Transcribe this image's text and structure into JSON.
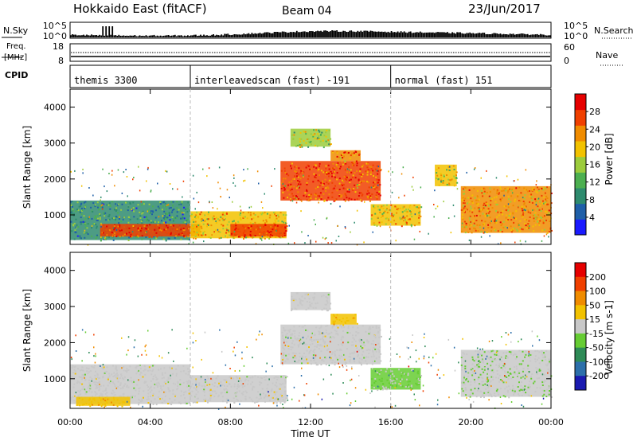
{
  "header": {
    "station": "Hokkaido East (fitACF)",
    "beam": "Beam 04",
    "date": "23/Jun/2017"
  },
  "nsky_panel": {
    "left_label": "N.Sky",
    "right_label": "N.Search",
    "left_ticks": [
      "10^5",
      "10^0"
    ],
    "right_ticks": [
      "10^5",
      "10^0"
    ]
  },
  "freq_panel": {
    "label_line1": "Freq.",
    "label_line2": "[MHz]",
    "left_ticks": [
      "18",
      "8"
    ],
    "right_ticks": [
      "60",
      "0"
    ],
    "right_label": "Nave"
  },
  "cpid_panel": {
    "label": "CPID",
    "segments": [
      {
        "start_hour": 0,
        "end_hour": 6,
        "name": "themis 3300"
      },
      {
        "start_hour": 6,
        "end_hour": 16,
        "name": "interleavedscan (fast) -191"
      },
      {
        "start_hour": 16,
        "end_hour": 24,
        "name": "normal (fast) 151"
      }
    ]
  },
  "x_axis": {
    "label": "Time UT",
    "ticks": [
      "00:00",
      "04:00",
      "08:00",
      "12:00",
      "16:00",
      "20:00",
      "00:00"
    ],
    "tick_hours": [
      0,
      4,
      8,
      12,
      16,
      20,
      24
    ],
    "range_hours": [
      0,
      24
    ]
  },
  "colors": {
    "power_scale": [
      "#1a1aff",
      "#1f5fa8",
      "#2e8b6e",
      "#4caf50",
      "#9ccc3c",
      "#f2c200",
      "#f08c00",
      "#f04000",
      "#e60000"
    ],
    "velocity_scale": [
      "#e60000",
      "#f04000",
      "#f08c00",
      "#f2c200",
      "#c8c8c8",
      "#66cc33",
      "#2e8b57",
      "#2c6faa",
      "#1a1ab0"
    ],
    "ground_scatter": "#b4b4b4"
  },
  "chart_data": [
    {
      "type": "heatmap",
      "panel": "power",
      "ylabel": "Slant Range [km]",
      "ylim": [
        180,
        4500
      ],
      "y_ticks": [
        1000,
        2000,
        3000,
        4000
      ],
      "colorbar": {
        "label": "Power [dB]",
        "ticks": [
          4,
          8,
          12,
          16,
          20,
          24,
          28
        ],
        "range": [
          0,
          32
        ]
      },
      "regions": [
        {
          "hours": [
            0,
            6
          ],
          "range_km": [
            300,
            1400
          ],
          "level": 10
        },
        {
          "hours": [
            1.5,
            6.5
          ],
          "range_km": [
            400,
            750
          ],
          "level": 28
        },
        {
          "hours": [
            6,
            10.8
          ],
          "range_km": [
            350,
            1100
          ],
          "level": 20
        },
        {
          "hours": [
            8,
            10.8
          ],
          "range_km": [
            400,
            750
          ],
          "level": 28
        },
        {
          "hours": [
            10.5,
            15.5
          ],
          "range_km": [
            1400,
            2500
          ],
          "level": 26
        },
        {
          "hours": [
            11,
            13
          ],
          "range_km": [
            2900,
            3400
          ],
          "level": 16
        },
        {
          "hours": [
            13,
            14.5
          ],
          "range_km": [
            2500,
            2800
          ],
          "level": 24
        },
        {
          "hours": [
            15,
            17.5
          ],
          "range_km": [
            700,
            1300
          ],
          "level": 20
        },
        {
          "hours": [
            19.5,
            24
          ],
          "range_km": [
            500,
            1800
          ],
          "level": 22
        },
        {
          "hours": [
            18.2,
            19.3
          ],
          "range_km": [
            1800,
            2400
          ],
          "level": 18
        }
      ]
    },
    {
      "type": "heatmap",
      "panel": "velocity",
      "ylabel": "Slant Range [km]",
      "ylim": [
        180,
        4500
      ],
      "y_ticks": [
        1000,
        2000,
        3000,
        4000
      ],
      "colorbar": {
        "label": "Velocity [m s-1]",
        "ticks": [
          200,
          100,
          50,
          15,
          -15,
          -50,
          -100,
          -200
        ],
        "range": [
          -250,
          250
        ]
      },
      "regions": [
        {
          "hours": [
            0,
            6
          ],
          "range_km": [
            300,
            1400
          ],
          "velocity": 0
        },
        {
          "hours": [
            0.3,
            3
          ],
          "range_km": [
            250,
            500
          ],
          "velocity": 60
        },
        {
          "hours": [
            6,
            10.8
          ],
          "range_km": [
            350,
            1100
          ],
          "velocity": 0
        },
        {
          "hours": [
            10.5,
            15.5
          ],
          "range_km": [
            1400,
            2500
          ],
          "velocity": 0
        },
        {
          "hours": [
            11,
            13
          ],
          "range_km": [
            2900,
            3400
          ],
          "velocity": 0
        },
        {
          "hours": [
            13,
            14.3
          ],
          "range_km": [
            2500,
            2800
          ],
          "velocity": 60
        },
        {
          "hours": [
            15,
            17.5
          ],
          "range_km": [
            700,
            1300
          ],
          "velocity": -30
        },
        {
          "hours": [
            19.5,
            24
          ],
          "range_km": [
            500,
            1800
          ],
          "velocity": -20
        }
      ]
    }
  ]
}
